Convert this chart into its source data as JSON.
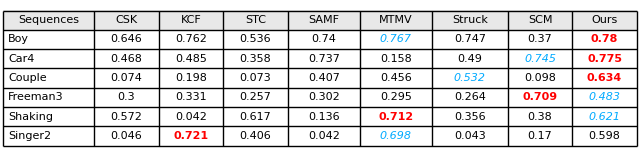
{
  "columns": [
    "Sequences",
    "CSK",
    "KCF",
    "STC",
    "SAMF",
    "MTMV",
    "Struck",
    "SCM",
    "Ours"
  ],
  "rows": [
    [
      "Boy",
      "0.646",
      "0.762",
      "0.536",
      "0.74",
      "0.767",
      "0.747",
      "0.37",
      "0.78"
    ],
    [
      "Car4",
      "0.468",
      "0.485",
      "0.358",
      "0.737",
      "0.158",
      "0.49",
      "0.745",
      "0.775"
    ],
    [
      "Couple",
      "0.074",
      "0.198",
      "0.073",
      "0.407",
      "0.456",
      "0.532",
      "0.098",
      "0.634"
    ],
    [
      "Freeman3",
      "0.3",
      "0.331",
      "0.257",
      "0.302",
      "0.295",
      "0.264",
      "0.709",
      "0.483"
    ],
    [
      "Shaking",
      "0.572",
      "0.042",
      "0.617",
      "0.136",
      "0.712",
      "0.356",
      "0.38",
      "0.621"
    ],
    [
      "Singer2",
      "0.046",
      "0.721",
      "0.406",
      "0.042",
      "0.698",
      "0.043",
      "0.17",
      "0.598"
    ]
  ],
  "cell_colors": [
    [
      "black",
      "black",
      "black",
      "black",
      "black",
      "cyan_italic",
      "black",
      "black",
      "red_bold"
    ],
    [
      "black",
      "black",
      "black",
      "black",
      "black",
      "black",
      "black",
      "cyan_italic",
      "red_bold"
    ],
    [
      "black",
      "black",
      "black",
      "black",
      "black",
      "black",
      "cyan_italic",
      "black",
      "red_bold"
    ],
    [
      "black",
      "black",
      "black",
      "black",
      "black",
      "black",
      "black",
      "red_bold",
      "cyan_italic"
    ],
    [
      "black",
      "black",
      "black",
      "black",
      "black",
      "red_bold",
      "black",
      "black",
      "cyan_italic"
    ],
    [
      "black",
      "black",
      "red_bold",
      "black",
      "black",
      "cyan_italic",
      "black",
      "black",
      "black"
    ]
  ],
  "cyan_color": "#00aaff",
  "red_color": "#ff0000",
  "bg_color": "#ffffff",
  "font_size": 8.0,
  "col_widths": [
    1.2,
    0.85,
    0.85,
    0.85,
    0.95,
    0.95,
    1.0,
    0.85,
    0.85
  ]
}
